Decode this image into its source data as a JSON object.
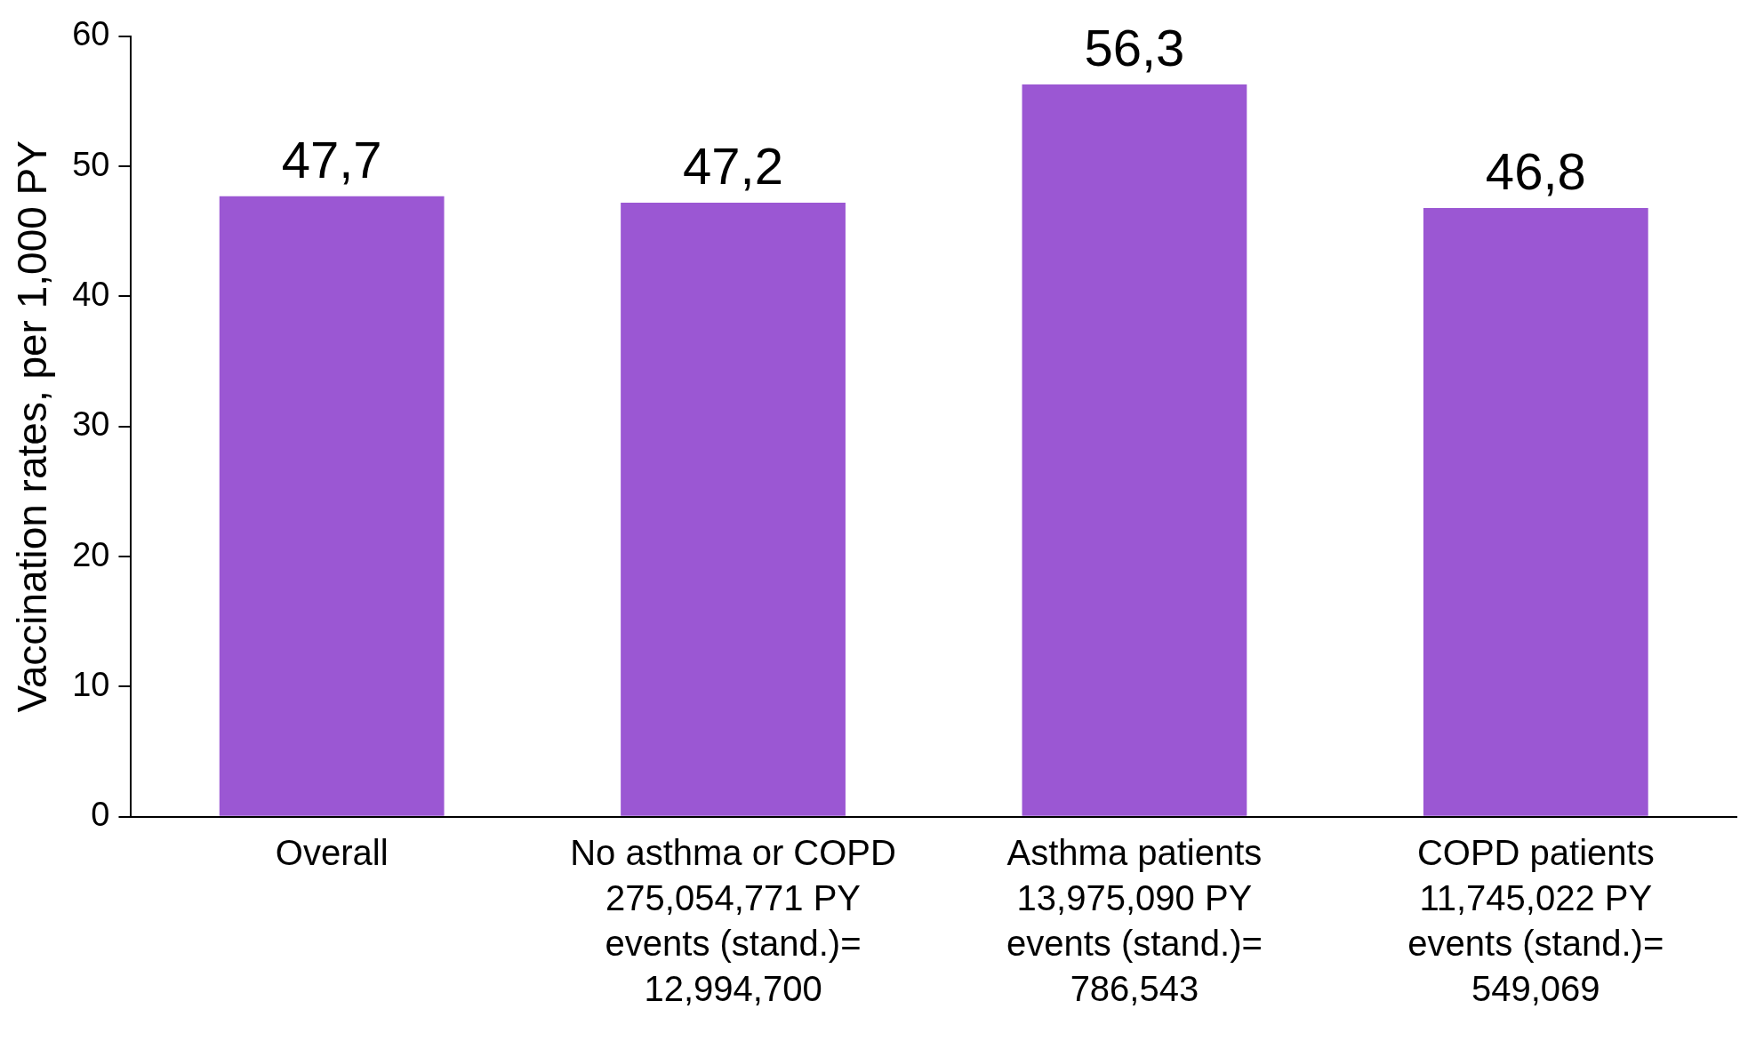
{
  "chart_data": {
    "type": "bar",
    "ylabel": "Vaccination rates, per 1,000 PY",
    "categories": [
      "Overall",
      "No asthma or COPD\n275,054,771 PY\nevents (stand.)=\n12,994,700",
      "Asthma patients\n13,975,090 PY\nevents (stand.)=\n786,543",
      "COPD patients\n11,745,022 PY\nevents (stand.)=\n549,069"
    ],
    "values": [
      47.7,
      47.2,
      56.3,
      46.8
    ],
    "value_labels": [
      "47,7",
      "47,2",
      "56,3",
      "46,8"
    ],
    "color": "#9b57d3",
    "ylim": [
      0,
      60
    ],
    "yticks": [
      0,
      10,
      20,
      30,
      40,
      50,
      60
    ],
    "grid": false,
    "legend": false
  }
}
